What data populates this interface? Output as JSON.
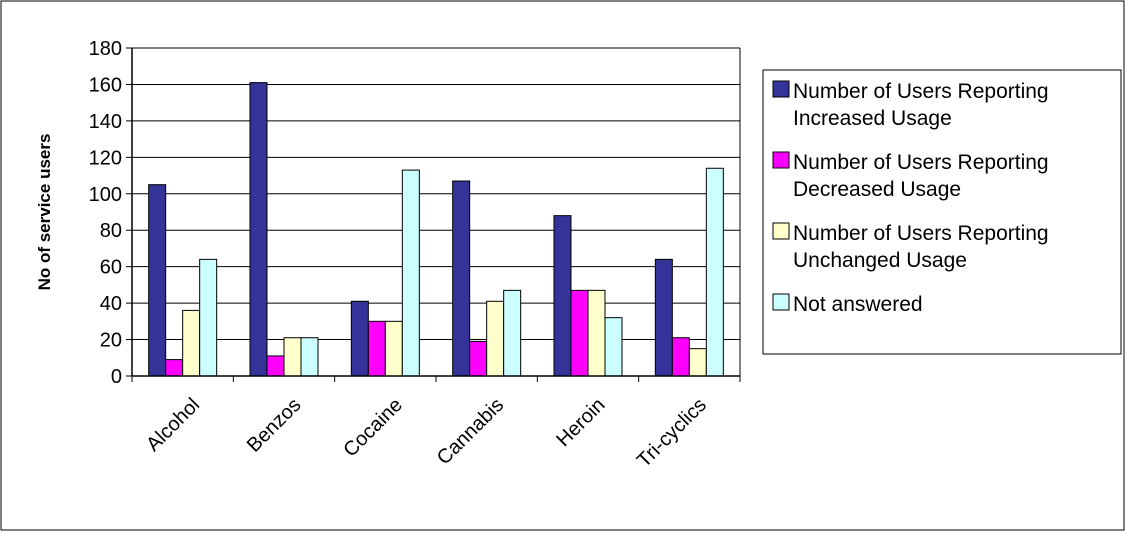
{
  "chart_data": {
    "type": "bar",
    "title": "",
    "xlabel": "",
    "ylabel": "No of service users",
    "ylim": [
      0,
      180
    ],
    "ytick_step": 20,
    "grid": true,
    "legend_position": "right",
    "categories": [
      "Alcohol",
      "Benzos",
      "Cocaine",
      "Cannabis",
      "Heroin",
      "Tri-cyclics"
    ],
    "series": [
      {
        "name": "Number of Users Reporting Increased Usage",
        "legend_lines": [
          "Number of Users Reporting",
          "Increased Usage"
        ],
        "color": "#333399",
        "values": [
          105,
          161,
          41,
          107,
          88,
          64
        ]
      },
      {
        "name": "Number of Users Reporting Decreased Usage",
        "legend_lines": [
          "Number of Users Reporting",
          "Decreased Usage"
        ],
        "color": "#ff00ff",
        "values": [
          9,
          11,
          30,
          19,
          47,
          21
        ]
      },
      {
        "name": "Number of Users Reporting Unchanged Usage",
        "legend_lines": [
          "Number of Users Reporting",
          "Unchanged Usage"
        ],
        "color": "#ffffcc",
        "values": [
          36,
          21,
          30,
          41,
          47,
          15
        ]
      },
      {
        "name": "Not answered",
        "legend_lines": [
          "Not answered"
        ],
        "color": "#ccffff",
        "values": [
          64,
          21,
          113,
          47,
          32,
          114
        ]
      }
    ]
  }
}
